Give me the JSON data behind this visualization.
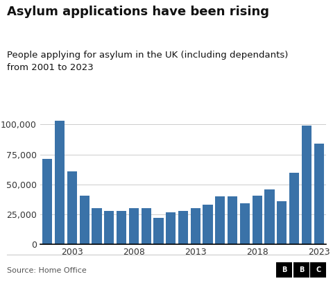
{
  "title": "Asylum applications have been rising",
  "subtitle": "People applying for asylum in the UK (including dependants)\nfrom 2001 to 2023",
  "source": "Source: Home Office",
  "years": [
    2001,
    2002,
    2003,
    2004,
    2005,
    2006,
    2007,
    2008,
    2009,
    2010,
    2011,
    2012,
    2013,
    2014,
    2015,
    2016,
    2017,
    2018,
    2019,
    2020,
    2021,
    2022,
    2023
  ],
  "values": [
    71000,
    103000,
    61000,
    40500,
    30500,
    28000,
    28000,
    30500,
    30000,
    22000,
    26500,
    28000,
    30000,
    33000,
    40000,
    40000,
    34500,
    40500,
    46000,
    36000,
    60000,
    99000,
    84000
  ],
  "bar_color": "#3a72a8",
  "background_color": "#ffffff",
  "ylim": [
    0,
    110000
  ],
  "yticks": [
    0,
    25000,
    50000,
    75000,
    100000
  ],
  "xtick_labels": [
    "2003",
    "2008",
    "2013",
    "2018",
    "2023"
  ],
  "xtick_positions": [
    2003,
    2008,
    2013,
    2018,
    2023
  ],
  "title_fontsize": 13,
  "subtitle_fontsize": 9.5,
  "source_fontsize": 8,
  "tick_fontsize": 9,
  "grid_color": "#cccccc",
  "axis_color": "#333333",
  "text_color": "#111111"
}
